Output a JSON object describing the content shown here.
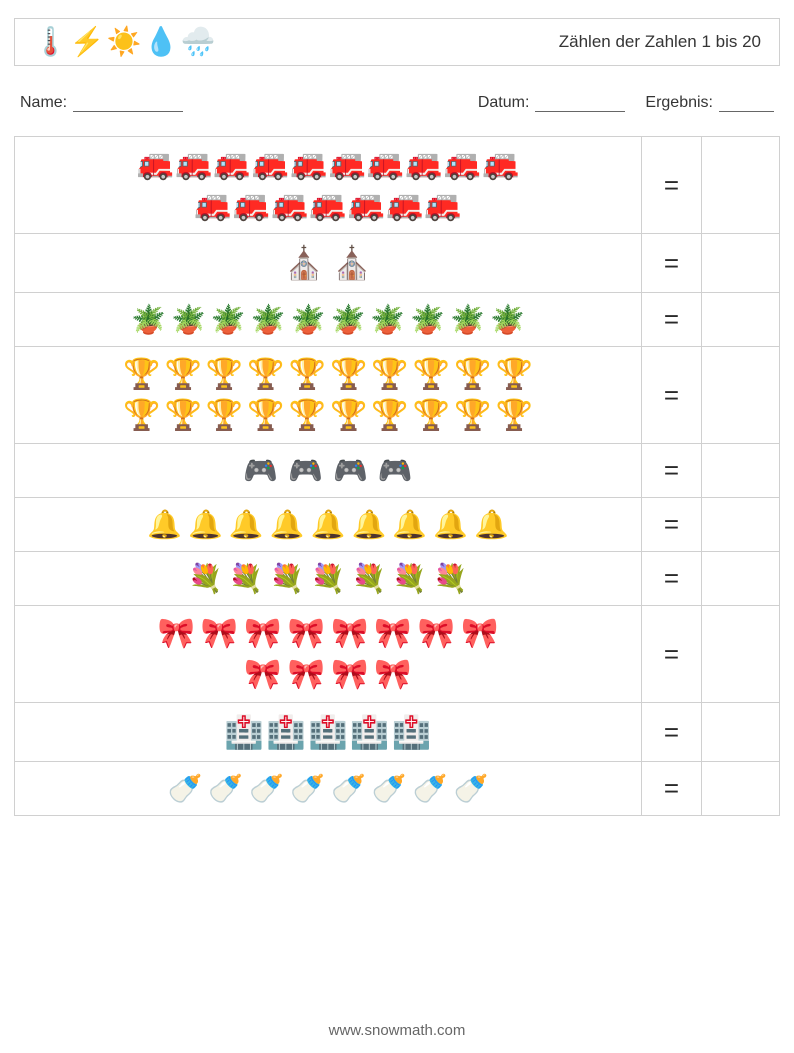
{
  "header": {
    "title": "Zählen der Zahlen 1 bis 20",
    "icons": [
      "🌡️",
      "⚡",
      "☀️",
      "💧",
      "🌧️"
    ]
  },
  "fields": {
    "name_label": "Name:",
    "date_label": "Datum:",
    "result_label": "Ergebnis:"
  },
  "equals_symbol": "=",
  "rows": [
    {
      "icon": "firetruck",
      "glyph": "🚒",
      "rows": [
        10,
        7
      ],
      "size": 30,
      "gap": 1
    },
    {
      "icon": "church",
      "glyph": "⛪",
      "rows": [
        2
      ],
      "size": 32,
      "gap": 8
    },
    {
      "icon": "plant",
      "glyph": "🪴",
      "rows": [
        10
      ],
      "size": 28,
      "gap": 5
    },
    {
      "icon": "trophy",
      "glyph": "🏆",
      "rows": [
        10,
        10
      ],
      "size": 30,
      "gap": 4
    },
    {
      "icon": "gameboy",
      "glyph": "🎮",
      "rows": [
        4
      ],
      "size": 28,
      "gap": 10
    },
    {
      "icon": "bell",
      "glyph": "🔔",
      "rows": [
        9
      ],
      "size": 28,
      "gap": 6
    },
    {
      "icon": "flower",
      "glyph": "💐",
      "rows": [
        7
      ],
      "size": 28,
      "gap": 6
    },
    {
      "icon": "bowtie",
      "glyph": "🎀",
      "rows": [
        8,
        4
      ],
      "size": 30,
      "gap": 6
    },
    {
      "icon": "hospital",
      "glyph": "🏥",
      "rows": [
        5
      ],
      "size": 32,
      "gap": 2
    },
    {
      "icon": "bottle",
      "glyph": "🍼",
      "rows": [
        8
      ],
      "size": 28,
      "gap": 6
    }
  ],
  "footer": {
    "url": "www.snowmath.com"
  }
}
